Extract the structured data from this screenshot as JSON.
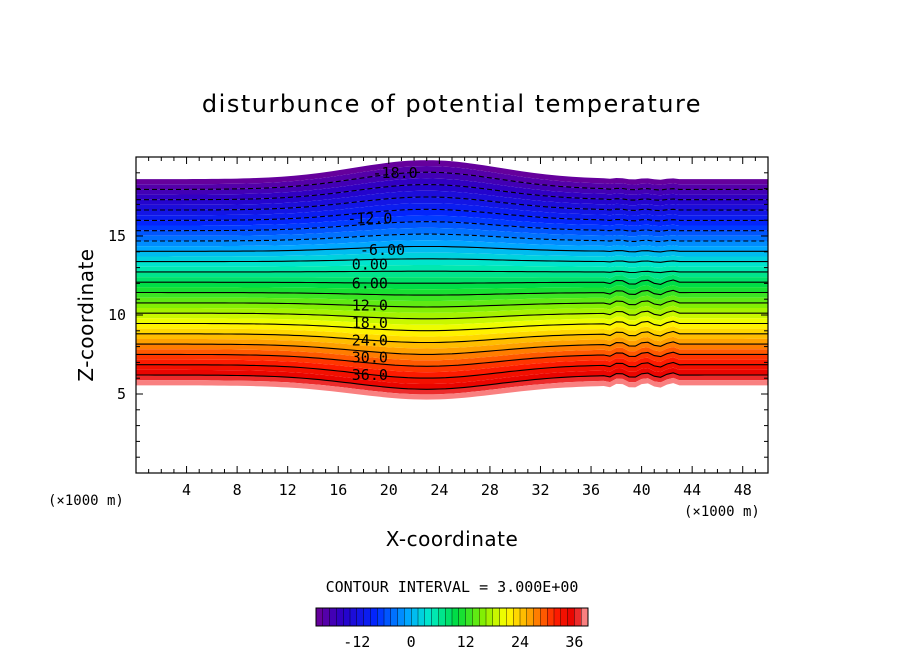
{
  "chart_data": {
    "type": "contour",
    "title": "disturbunce of potential temperature",
    "xlabel": "X-coordinate",
    "ylabel": "Z-coordinate",
    "x_unit": "(×1000 m)",
    "y_unit": "(×1000 m)",
    "xlim": [
      0,
      50
    ],
    "ylim": [
      0,
      20
    ],
    "x_ticks": [
      "4",
      "8",
      "12",
      "16",
      "20",
      "24",
      "28",
      "32",
      "36",
      "40",
      "44",
      "48"
    ],
    "y_ticks": [
      "5",
      "10",
      "15"
    ],
    "contour_interval_text": "CONTOUR INTERVAL = 3.000E+00",
    "contour_interval": 3,
    "contour_labels": [
      {
        "text": "-18.0",
        "value": -18,
        "x": 19,
        "z": 19.0
      },
      {
        "text": "-12.0",
        "value": -12,
        "x": 17,
        "z": 16.1
      },
      {
        "text": "-6.00",
        "value": -6,
        "x": 18,
        "z": 14.1
      },
      {
        "text": "0.00",
        "value": 0,
        "x": 17,
        "z": 13.2
      },
      {
        "text": "6.00",
        "value": 6,
        "x": 17,
        "z": 12.0
      },
      {
        "text": "12.0",
        "value": 12,
        "x": 17,
        "z": 10.6
      },
      {
        "text": "18.0",
        "value": 18,
        "x": 17,
        "z": 9.5
      },
      {
        "text": "24.0",
        "value": 24,
        "x": 17,
        "z": 8.4
      },
      {
        "text": "30.0",
        "value": 30,
        "x": 17,
        "z": 7.3
      },
      {
        "text": "36.0",
        "value": 36,
        "x": 17,
        "z": 6.2
      }
    ],
    "colorbar": {
      "min": -21,
      "max": 39,
      "tick_values": [
        -12,
        0,
        12,
        24,
        36
      ],
      "tick_labels": [
        "-12",
        "0",
        "12",
        "24",
        "36"
      ]
    },
    "field_bounds": {
      "bottom_z": 6.2,
      "top_z": 18.6,
      "hill_center_x": 23,
      "hill_amplitude_z": 1.2
    }
  }
}
